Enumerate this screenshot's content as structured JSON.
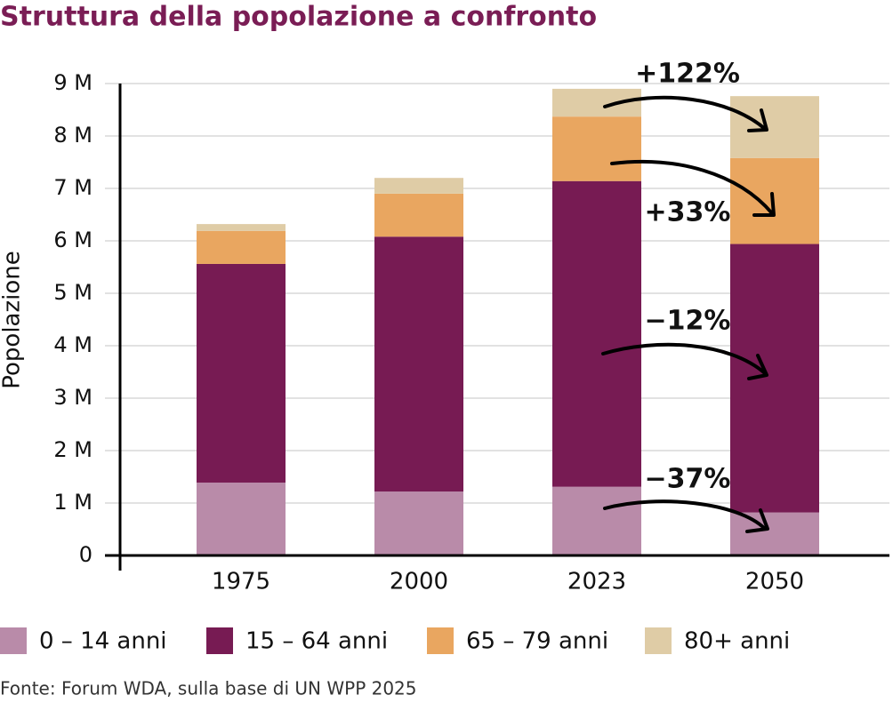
{
  "chart_data": {
    "type": "stacked-bar",
    "title": "Struttura della popolazione a confronto",
    "y_label": "Popolazione",
    "source": "Fonte: Forum WDA, sulla base di UN WPP 2025",
    "categories": [
      "1975",
      "2000",
      "2023",
      "2050"
    ],
    "series": [
      {
        "name": "0 – 14 anni",
        "color": "#b98ba9",
        "values": [
          1.39,
          1.22,
          1.31,
          0.82
        ]
      },
      {
        "name": "15 – 64 anni",
        "color": "#771b53",
        "values": [
          4.17,
          4.86,
          5.83,
          5.12
        ]
      },
      {
        "name": "65 – 79 anni",
        "color": "#e9a660",
        "values": [
          0.63,
          0.82,
          1.23,
          1.64
        ]
      },
      {
        "name": "80+ anni",
        "color": "#dfcca6",
        "values": [
          0.13,
          0.3,
          0.53,
          1.18
        ]
      }
    ],
    "ylim": [
      0,
      9
    ],
    "yticks": [
      0,
      {
        "value": 1,
        "label": "1 M"
      },
      {
        "value": 2,
        "label": "2 M"
      },
      {
        "value": 3,
        "label": "3 M"
      },
      {
        "value": 4,
        "label": "4 M"
      },
      {
        "value": 5,
        "label": "5 M"
      },
      {
        "value": 6,
        "label": "6 M"
      },
      {
        "value": 7,
        "label": "7 M"
      },
      {
        "value": 8,
        "label": "8 M"
      },
      {
        "value": 9,
        "label": "9 M"
      }
    ],
    "grid": true,
    "annotations": [
      "+122%",
      "+33%",
      "−12%",
      "−37%"
    ]
  }
}
